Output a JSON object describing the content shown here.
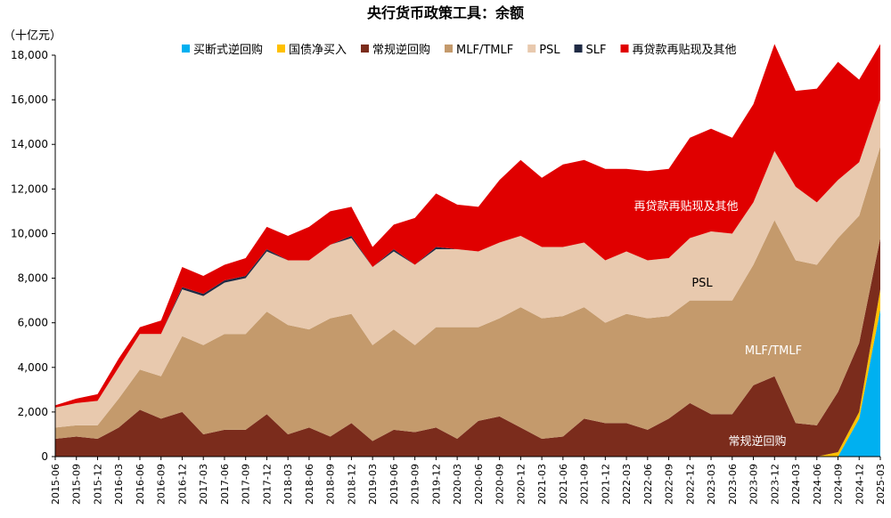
{
  "chart_data": {
    "type": "area",
    "title": "央行货币政策工具：余额",
    "unit": "（十亿元）",
    "ylim": [
      0,
      18000
    ],
    "yticks": [
      0,
      2000,
      4000,
      6000,
      8000,
      10000,
      12000,
      14000,
      16000,
      18000
    ],
    "ytick_labels": [
      "0",
      "2,000",
      "4,000",
      "6,000",
      "8,000",
      "10,000",
      "12,000",
      "14,000",
      "16,000",
      "18,000"
    ],
    "grid": false,
    "legend_position": "top",
    "x": [
      "2015-06",
      "2015-09",
      "2015-12",
      "2016-03",
      "2016-06",
      "2016-09",
      "2016-12",
      "2017-03",
      "2017-06",
      "2017-09",
      "2017-12",
      "2018-03",
      "2018-06",
      "2018-09",
      "2018-12",
      "2019-03",
      "2019-06",
      "2019-09",
      "2019-12",
      "2020-03",
      "2020-06",
      "2020-09",
      "2020-12",
      "2021-03",
      "2021-06",
      "2021-09",
      "2021-12",
      "2022-03",
      "2022-06",
      "2022-09",
      "2022-12",
      "2023-03",
      "2023-06",
      "2023-09",
      "2023-12",
      "2024-03",
      "2024-06",
      "2024-09",
      "2024-12",
      "2025-03"
    ],
    "series": [
      {
        "name": "买断式逆回购",
        "color": "#00B0F0",
        "values": [
          0,
          0,
          0,
          0,
          0,
          0,
          0,
          0,
          0,
          0,
          0,
          0,
          0,
          0,
          0,
          0,
          0,
          0,
          0,
          0,
          0,
          0,
          0,
          0,
          0,
          0,
          0,
          0,
          0,
          0,
          0,
          0,
          0,
          0,
          0,
          0,
          0,
          0,
          1700,
          6600
        ]
      },
      {
        "name": "国债净买入",
        "color": "#FFC000",
        "values": [
          0,
          0,
          0,
          0,
          0,
          0,
          0,
          0,
          0,
          0,
          0,
          0,
          0,
          0,
          0,
          0,
          0,
          0,
          0,
          0,
          0,
          0,
          0,
          0,
          0,
          0,
          0,
          0,
          0,
          0,
          0,
          0,
          0,
          0,
          0,
          0,
          0,
          200,
          300,
          900
        ]
      },
      {
        "name": "常规逆回购",
        "color": "#7B2C1C",
        "values": [
          800,
          900,
          800,
          1300,
          2100,
          1700,
          2000,
          1000,
          1200,
          1200,
          1900,
          1000,
          1300,
          900,
          1500,
          700,
          1200,
          1100,
          1300,
          800,
          1600,
          1800,
          1300,
          800,
          900,
          1700,
          1500,
          1500,
          1200,
          1700,
          2400,
          1900,
          1900,
          3200,
          3600,
          1500,
          1400,
          2700,
          3100,
          2300
        ]
      },
      {
        "name": "MLF/TMLF",
        "color": "#C49A6C",
        "values": [
          500,
          500,
          600,
          1300,
          1800,
          1900,
          3400,
          4000,
          4300,
          4300,
          4600,
          4900,
          4400,
          5300,
          4900,
          4300,
          4500,
          3900,
          4500,
          5000,
          4200,
          4400,
          5400,
          5400,
          5400,
          5000,
          4500,
          4900,
          5000,
          4600,
          4600,
          5100,
          5100,
          5400,
          7000,
          7300,
          7200,
          6900,
          5700,
          4100
        ]
      },
      {
        "name": "PSL",
        "color": "#E8C9AE",
        "values": [
          900,
          1000,
          1100,
          1400,
          1600,
          1900,
          2100,
          2200,
          2300,
          2500,
          2700,
          2900,
          3100,
          3300,
          3400,
          3500,
          3500,
          3600,
          3500,
          3500,
          3400,
          3400,
          3200,
          3200,
          3100,
          2900,
          2800,
          2800,
          2600,
          2600,
          2800,
          3100,
          3000,
          2800,
          3100,
          3300,
          2800,
          2600,
          2400,
          2100
        ]
      },
      {
        "name": "SLF",
        "color": "#1F2A44",
        "values": [
          0,
          0,
          0,
          0,
          0,
          0,
          100,
          100,
          100,
          100,
          100,
          0,
          0,
          0,
          100,
          0,
          100,
          0,
          100,
          0,
          0,
          0,
          0,
          0,
          0,
          0,
          0,
          0,
          0,
          0,
          0,
          0,
          0,
          0,
          0,
          0,
          0,
          0,
          0,
          0
        ]
      },
      {
        "name": "再贷款再贴现及其他",
        "color": "#E00000",
        "values": [
          100,
          200,
          300,
          400,
          300,
          600,
          900,
          800,
          700,
          800,
          1000,
          1100,
          1500,
          1500,
          1300,
          900,
          1100,
          2100,
          2400,
          2000,
          2000,
          2800,
          3400,
          3100,
          3700,
          3700,
          4100,
          3700,
          4000,
          4000,
          4500,
          4600,
          4300,
          4400,
          4800,
          4300,
          5100,
          5300,
          3700,
          2500
        ]
      }
    ],
    "annotations": [
      "再贷款再贴现及其他",
      "PSL",
      "MLF/TMLF",
      "常规逆回购"
    ]
  }
}
